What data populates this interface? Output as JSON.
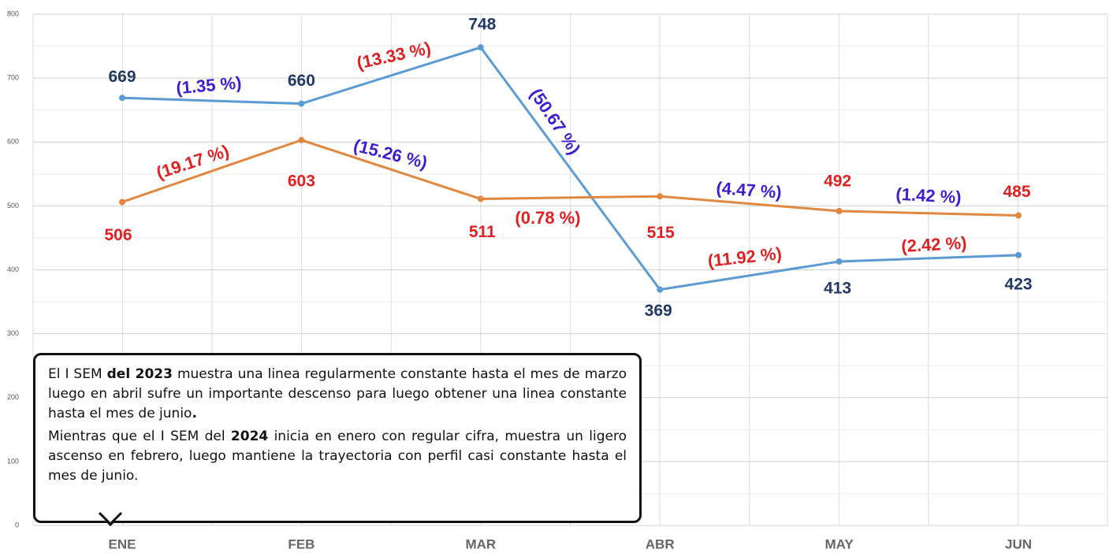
{
  "chart_data": {
    "type": "line",
    "categories": [
      "ENE",
      "FEB",
      "MAR",
      "ABR",
      "MAY",
      "JUN"
    ],
    "series": [
      {
        "color": "#5b9bd5",
        "label_color": "#1f3864",
        "values": [
          669,
          660,
          748,
          369,
          413,
          423
        ],
        "change_labels": [
          {
            "text": "(1.35 %)",
            "color": "#3a1ed0"
          },
          {
            "text": "(13.33 %)",
            "color": "#e02020"
          },
          {
            "text": "(50.67 %)",
            "color": "#3a1ed0"
          },
          {
            "text": "(11.92 %)",
            "color": "#e02020"
          },
          {
            "text": "(2.42 %)",
            "color": "#e02020"
          }
        ]
      },
      {
        "color": "#e2873f",
        "label_color": "#e02020",
        "values": [
          506,
          603,
          511,
          515,
          492,
          485
        ],
        "change_labels": [
          {
            "text": "(19.17 %)",
            "color": "#e02020"
          },
          {
            "text": "(15.26 %)",
            "color": "#3a1ed0"
          },
          {
            "text": "(0.78 %)",
            "color": "#e02020"
          },
          {
            "text": "(4.47 %)",
            "color": "#3a1ed0"
          },
          {
            "text": "(1.42 %)",
            "color": "#3a1ed0"
          }
        ]
      }
    ],
    "ylim": [
      0,
      800
    ],
    "yticks": [
      0,
      100,
      200,
      300,
      400,
      500,
      600,
      700,
      800
    ],
    "grid": true,
    "note": [
      [
        {
          "text": "El I SEM ",
          "bold": false
        },
        {
          "text": "del 2023",
          "bold": true
        },
        {
          "text": " muestra una linea regularmente constante hasta el mes de marzo  luego en abril sufre un importante descenso  para luego obtener una linea constante hasta el mes de junio",
          "bold": false
        },
        {
          "text": ".",
          "bold": true
        }
      ],
      [
        {
          "text": "Mientras que el I SEM del ",
          "bold": false
        },
        {
          "text": "2024",
          "bold": true
        },
        {
          "text": " inicia en enero con regular cifra, muestra un ligero ascenso en febrero, luego mantiene la trayectoria con perfil casi constante hasta el mes de junio.",
          "bold": false
        }
      ]
    ]
  }
}
